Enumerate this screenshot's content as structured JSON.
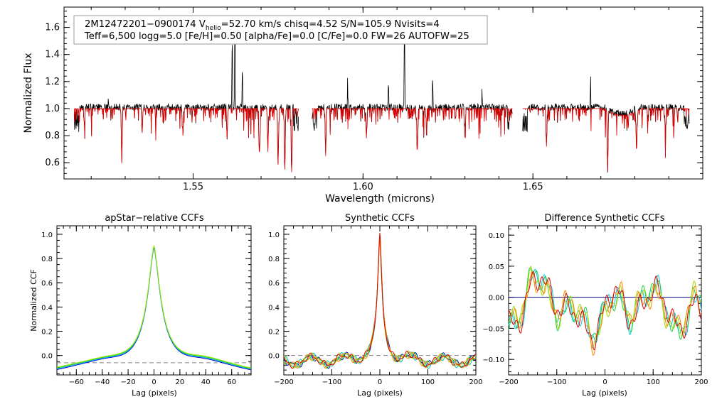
{
  "chart_data": [
    {
      "type": "line",
      "id": "spectrum",
      "title": "",
      "xlabel": "Wavelength (microns)",
      "ylabel": "Normalized Flux",
      "xlim": [
        1.512,
        1.7
      ],
      "ylim": [
        0.48,
        1.75
      ],
      "xticks": [
        1.55,
        1.6,
        1.65
      ],
      "xtick_labels": [
        "1.55",
        "1.60",
        "1.65"
      ],
      "yticks": [
        0.6,
        0.8,
        1.0,
        1.2,
        1.4,
        1.6
      ],
      "ytick_labels": [
        "0.6",
        "0.8",
        "1.0",
        "1.2",
        "1.4",
        "1.6"
      ],
      "chips": [
        [
          1.515,
          1.581
        ],
        [
          1.585,
          1.644
        ],
        [
          1.647,
          1.696
        ]
      ],
      "annotation": {
        "line1_a": "2M12472201−0900174  V",
        "line1_sub": "helio",
        "line1_b": "=52.70 km/s  chisq=4.52  S/N=105.9  Nvisits=4",
        "line2": "Teff=6,500 logg=5.0 [Fe/H]=0.50 [alpha/Fe]=0.0 [C/Fe]=0.0 FW=26 AUTOFW=25"
      },
      "series": [
        {
          "name": "observed",
          "color": "#000000"
        },
        {
          "name": "model",
          "color": "#e00000"
        }
      ]
    },
    {
      "type": "line",
      "id": "apstar_ccf",
      "title": "apStar−relative CCFs",
      "xlabel": "Lag (pixels)",
      "ylabel": "Normalized CCF",
      "xlim": [
        -75,
        75
      ],
      "ylim": [
        -0.16,
        1.07
      ],
      "xticks": [
        -60,
        -40,
        -20,
        0,
        20,
        40,
        60
      ],
      "xtick_labels": [
        "−60",
        "−40",
        "−20",
        "0",
        "20",
        "40",
        "60"
      ],
      "yticks": [
        0.0,
        0.2,
        0.4,
        0.6,
        0.8,
        1.0
      ],
      "ytick_labels": [
        "0.0",
        "0.2",
        "0.4",
        "0.6",
        "0.8",
        "1.0"
      ],
      "series": [
        {
          "name": "visit1",
          "color": "#0000c8"
        },
        {
          "name": "visit2",
          "color": "#00aaff"
        },
        {
          "name": "visit3",
          "color": "#22cc22"
        },
        {
          "name": "visit4",
          "color": "#99ee00"
        }
      ]
    },
    {
      "type": "line",
      "id": "synthetic_ccf",
      "title": "Synthetic CCFs",
      "xlabel": "Lag (pixels)",
      "ylabel": "",
      "xlim": [
        -200,
        200
      ],
      "ylim": [
        -0.16,
        1.07
      ],
      "xticks": [
        -200,
        -100,
        0,
        100,
        200
      ],
      "xtick_labels": [
        "−200",
        "−100",
        "0",
        "100",
        "200"
      ],
      "yticks": [
        0.0,
        0.2,
        0.4,
        0.6,
        0.8,
        1.0
      ],
      "ytick_labels": [
        "0.0",
        "0.2",
        "0.4",
        "0.6",
        "0.8",
        "1.0"
      ],
      "series": [
        {
          "name": "visit1",
          "color": "#0000c8"
        },
        {
          "name": "visit2",
          "color": "#00bbdd"
        },
        {
          "name": "visit3",
          "color": "#22cc22"
        },
        {
          "name": "visit4",
          "color": "#aadd00"
        },
        {
          "name": "visit5",
          "color": "#ff8800"
        },
        {
          "name": "visit6",
          "color": "#dd0000"
        }
      ]
    },
    {
      "type": "line",
      "id": "difference_ccf",
      "title": "Difference Synthetic CCFs",
      "xlabel": "Lag (pixels)",
      "ylabel": "",
      "xlim": [
        -200,
        200
      ],
      "ylim": [
        -0.125,
        0.115
      ],
      "xticks": [
        -200,
        -100,
        0,
        100,
        200
      ],
      "xtick_labels": [
        "−200",
        "−100",
        "0",
        "100",
        "200"
      ],
      "yticks": [
        -0.1,
        -0.05,
        0.0,
        0.05,
        0.1
      ],
      "ytick_labels": [
        "−0.10",
        "−0.05",
        "0.00",
        "0.05",
        "0.10"
      ],
      "series": [
        {
          "name": "visit1",
          "color": "#00c8e0"
        },
        {
          "name": "visit2",
          "color": "#22cc44"
        },
        {
          "name": "visit3",
          "color": "#99dd00"
        },
        {
          "name": "visit4",
          "color": "#ff8800"
        },
        {
          "name": "visit5",
          "color": "#dd0000"
        }
      ]
    }
  ]
}
